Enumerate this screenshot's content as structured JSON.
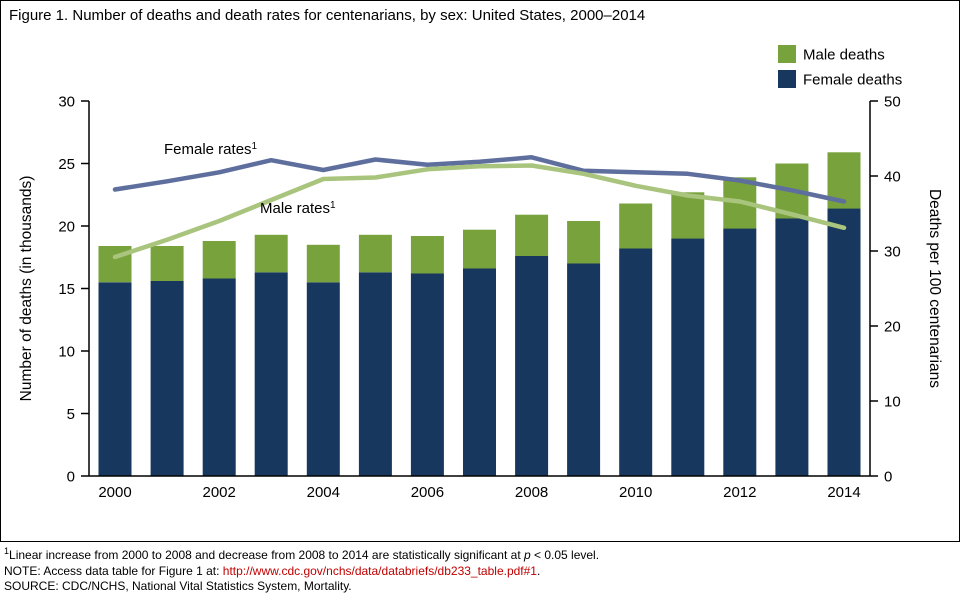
{
  "title": "Figure 1. Number of deaths and death rates for centenarians, by sex: United States, 2000–2014",
  "legend": {
    "male": "Male deaths",
    "female": "Female deaths"
  },
  "footnotes": {
    "fn1_sup": "1",
    "fn1_text": "Linear increase from 2000 to 2008 and decrease from 2008 to 2014 are statistically significant at ",
    "fn1_italic": "p",
    "fn1_rest": " < 0.05 level.",
    "note_prefix": "NOTE: Access data table for Figure 1 at: ",
    "note_link": "http://www.cdc.gov/nchs/data/databriefs/db233_table.pdf#1",
    "note_suffix": ".",
    "source": "SOURCE: CDC/NCHS, National Vital Statistics System, Mortality."
  },
  "chart_data": {
    "type": "bar",
    "subtype": "stacked_bars_with_line_overlay",
    "stacked": true,
    "grid": false,
    "legend_position": "top-right",
    "years": [
      2000,
      2001,
      2002,
      2003,
      2004,
      2005,
      2006,
      2007,
      2008,
      2009,
      2010,
      2011,
      2012,
      2013,
      2014
    ],
    "x_tick_labels": [
      "2000",
      "2002",
      "2004",
      "2006",
      "2008",
      "2010",
      "2012",
      "2014"
    ],
    "bar_series": [
      {
        "name": "Female deaths",
        "axis": "left",
        "color": "#17375e",
        "values": [
          15.5,
          15.6,
          15.8,
          16.3,
          15.5,
          16.3,
          16.2,
          16.6,
          17.6,
          17.0,
          18.2,
          19.0,
          19.8,
          20.6,
          21.4
        ]
      },
      {
        "name": "Male deaths",
        "axis": "left",
        "color": "#78a23c",
        "values": [
          2.9,
          2.8,
          3.0,
          3.0,
          3.0,
          3.0,
          3.0,
          3.1,
          3.3,
          3.4,
          3.6,
          3.7,
          4.1,
          4.4,
          4.5
        ]
      }
    ],
    "line_series": [
      {
        "name": "Female rates",
        "axis": "right",
        "color": "#5e6f9e",
        "values": [
          38.2,
          39.3,
          40.5,
          42.1,
          40.8,
          42.2,
          41.5,
          41.9,
          42.5,
          40.7,
          40.5,
          40.3,
          39.4,
          38.1,
          36.6
        ]
      },
      {
        "name": "Male rates",
        "axis": "right",
        "color": "#a9c47c",
        "values": [
          29.2,
          31.5,
          34.0,
          36.8,
          39.6,
          39.8,
          40.9,
          41.3,
          41.4,
          40.3,
          38.7,
          37.4,
          36.6,
          34.9,
          33.1
        ]
      }
    ],
    "left_axis": {
      "label": "Number of deaths (in thousands)",
      "min": 0,
      "max": 30,
      "ticks": [
        0,
        5,
        10,
        15,
        20,
        25,
        30
      ]
    },
    "right_axis": {
      "label": "Deaths per 100 centenarians",
      "min": 0,
      "max": 50,
      "ticks": [
        0,
        10,
        20,
        30,
        40,
        50
      ]
    },
    "annotations": [
      {
        "text": "Female rates",
        "sup": "1"
      },
      {
        "text": "Male rates",
        "sup": "1"
      }
    ]
  }
}
